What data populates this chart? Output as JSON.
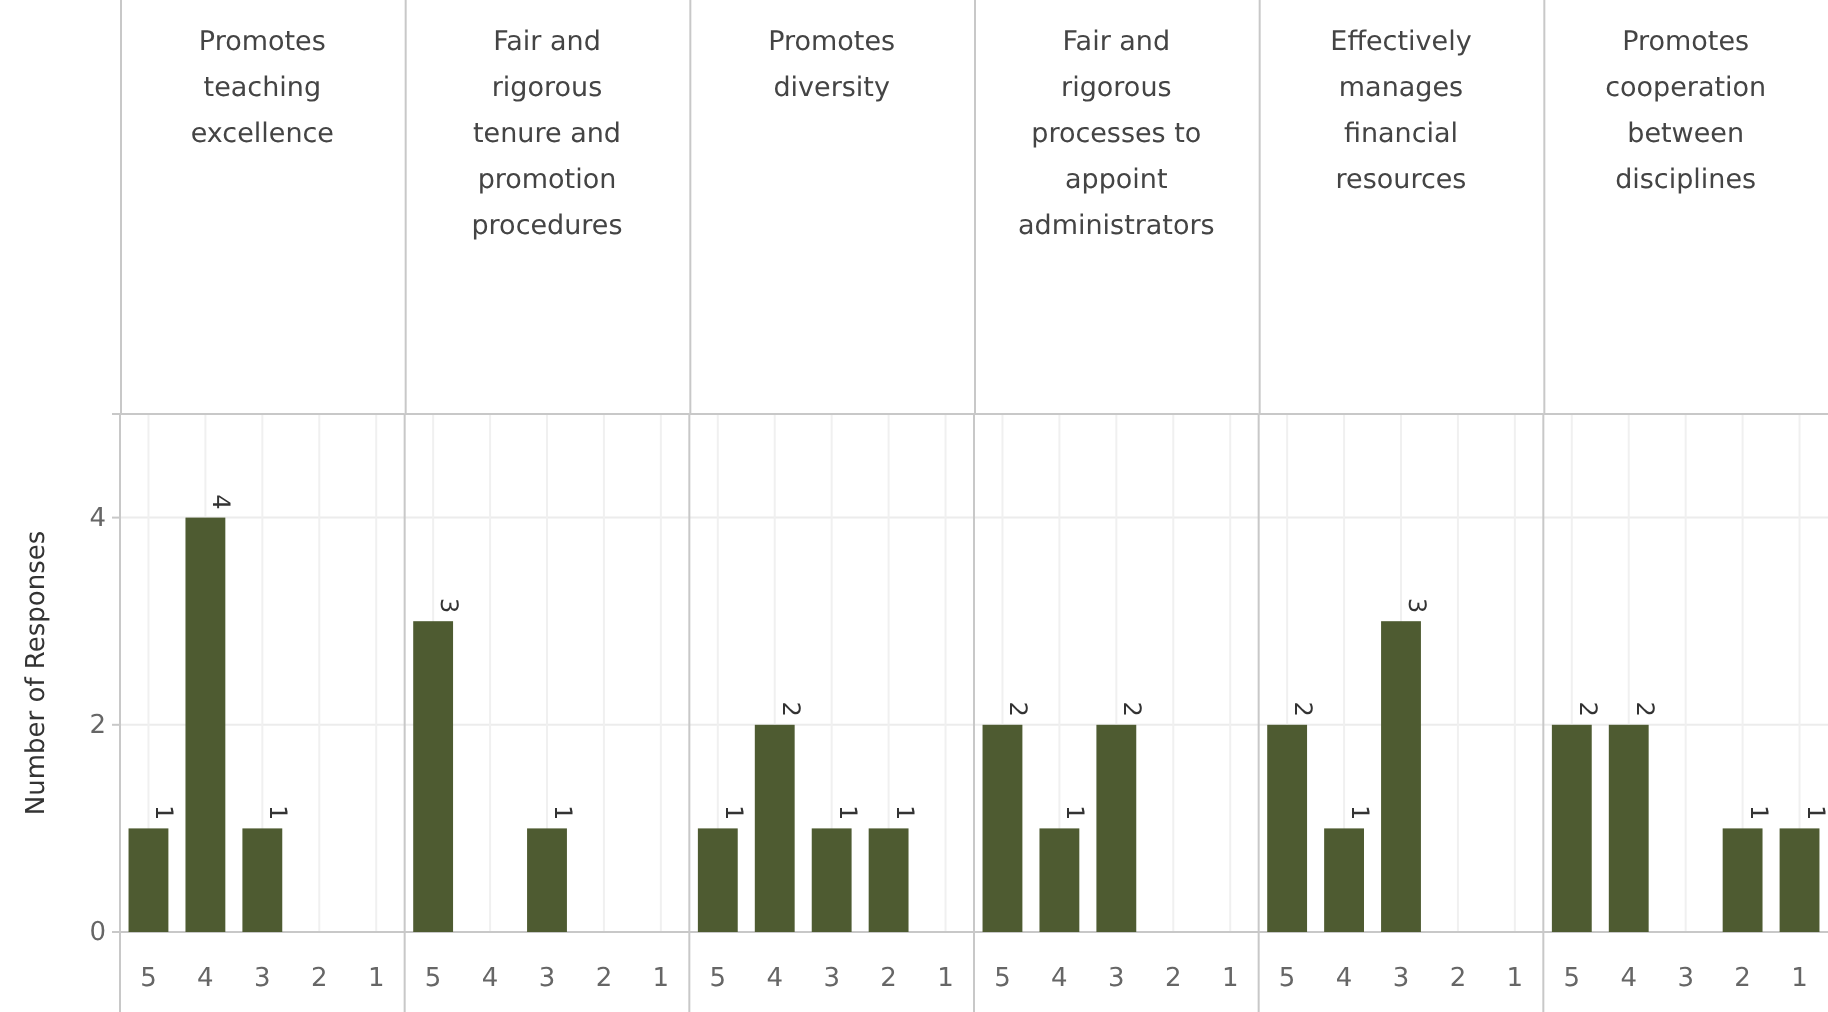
{
  "chart_data": [
    {
      "type": "bar",
      "title": "Promotes teaching excellence",
      "ylabel": "Number of Responses",
      "categories": [
        "5",
        "4",
        "3",
        "2",
        "1"
      ],
      "values": [
        1,
        4,
        1,
        0,
        0
      ],
      "value_labels": [
        "1",
        "4",
        "1",
        null,
        null
      ],
      "color": "#4e5b31",
      "ylim": [
        0,
        5
      ],
      "yticks": [
        0,
        2,
        4
      ],
      "grid": true
    },
    {
      "type": "bar",
      "title": "Fair and rigorous tenure and promotion procedures",
      "categories": [
        "5",
        "4",
        "3",
        "2",
        "1"
      ],
      "values": [
        3,
        0,
        1,
        0,
        0
      ],
      "value_labels": [
        "3",
        null,
        "1",
        null,
        null
      ],
      "color": "#4e5b31",
      "ylim": [
        0,
        5
      ],
      "yticks": [
        0,
        2,
        4
      ],
      "grid": true,
      "tick_labels": "x"
    },
    {
      "type": "bar",
      "title": "Promotes diversity",
      "categories": [
        "5",
        "4",
        "3",
        "2",
        "1"
      ],
      "values": [
        1,
        2,
        1,
        1,
        0
      ],
      "value_labels": [
        "1",
        "2",
        "1",
        "1",
        null
      ],
      "color": "#4e5b31",
      "ylim": [
        0,
        5
      ],
      "yticks": [
        0,
        2,
        4
      ],
      "grid": true,
      "tick_labels": "x"
    },
    {
      "type": "bar",
      "title": "Fair and rigorous processes to appoint administrators",
      "categories": [
        "5",
        "4",
        "3",
        "2",
        "1"
      ],
      "values": [
        2,
        1,
        2,
        0,
        0
      ],
      "value_labels": [
        "2",
        "1",
        "2",
        null,
        null
      ],
      "color": "#4e5b31",
      "ylim": [
        0,
        5
      ],
      "yticks": [
        0,
        2,
        4
      ],
      "grid": true,
      "tick_labels": "x"
    },
    {
      "type": "bar",
      "title": "Effectively manages financial resources",
      "categories": [
        "5",
        "4",
        "3",
        "2",
        "1"
      ],
      "values": [
        2,
        1,
        3,
        0,
        0
      ],
      "value_labels": [
        "2",
        "1",
        "3",
        null,
        null
      ],
      "color": "#4e5b31",
      "ylim": [
        0,
        5
      ],
      "yticks": [
        0,
        2,
        4
      ],
      "grid": true,
      "tick_labels": "x"
    },
    {
      "type": "bar",
      "title": "Promotes cooperation between disciplines",
      "categories": [
        "5",
        "4",
        "3",
        "2",
        "1"
      ],
      "values": [
        2,
        2,
        0,
        1,
        1
      ],
      "value_labels": [
        "2",
        "2",
        null,
        "1",
        "1"
      ],
      "color": "#4e5b31",
      "ylim": [
        0,
        5
      ],
      "yticks": [
        0,
        2,
        4
      ],
      "grid": true,
      "tick_labels": "x"
    }
  ]
}
